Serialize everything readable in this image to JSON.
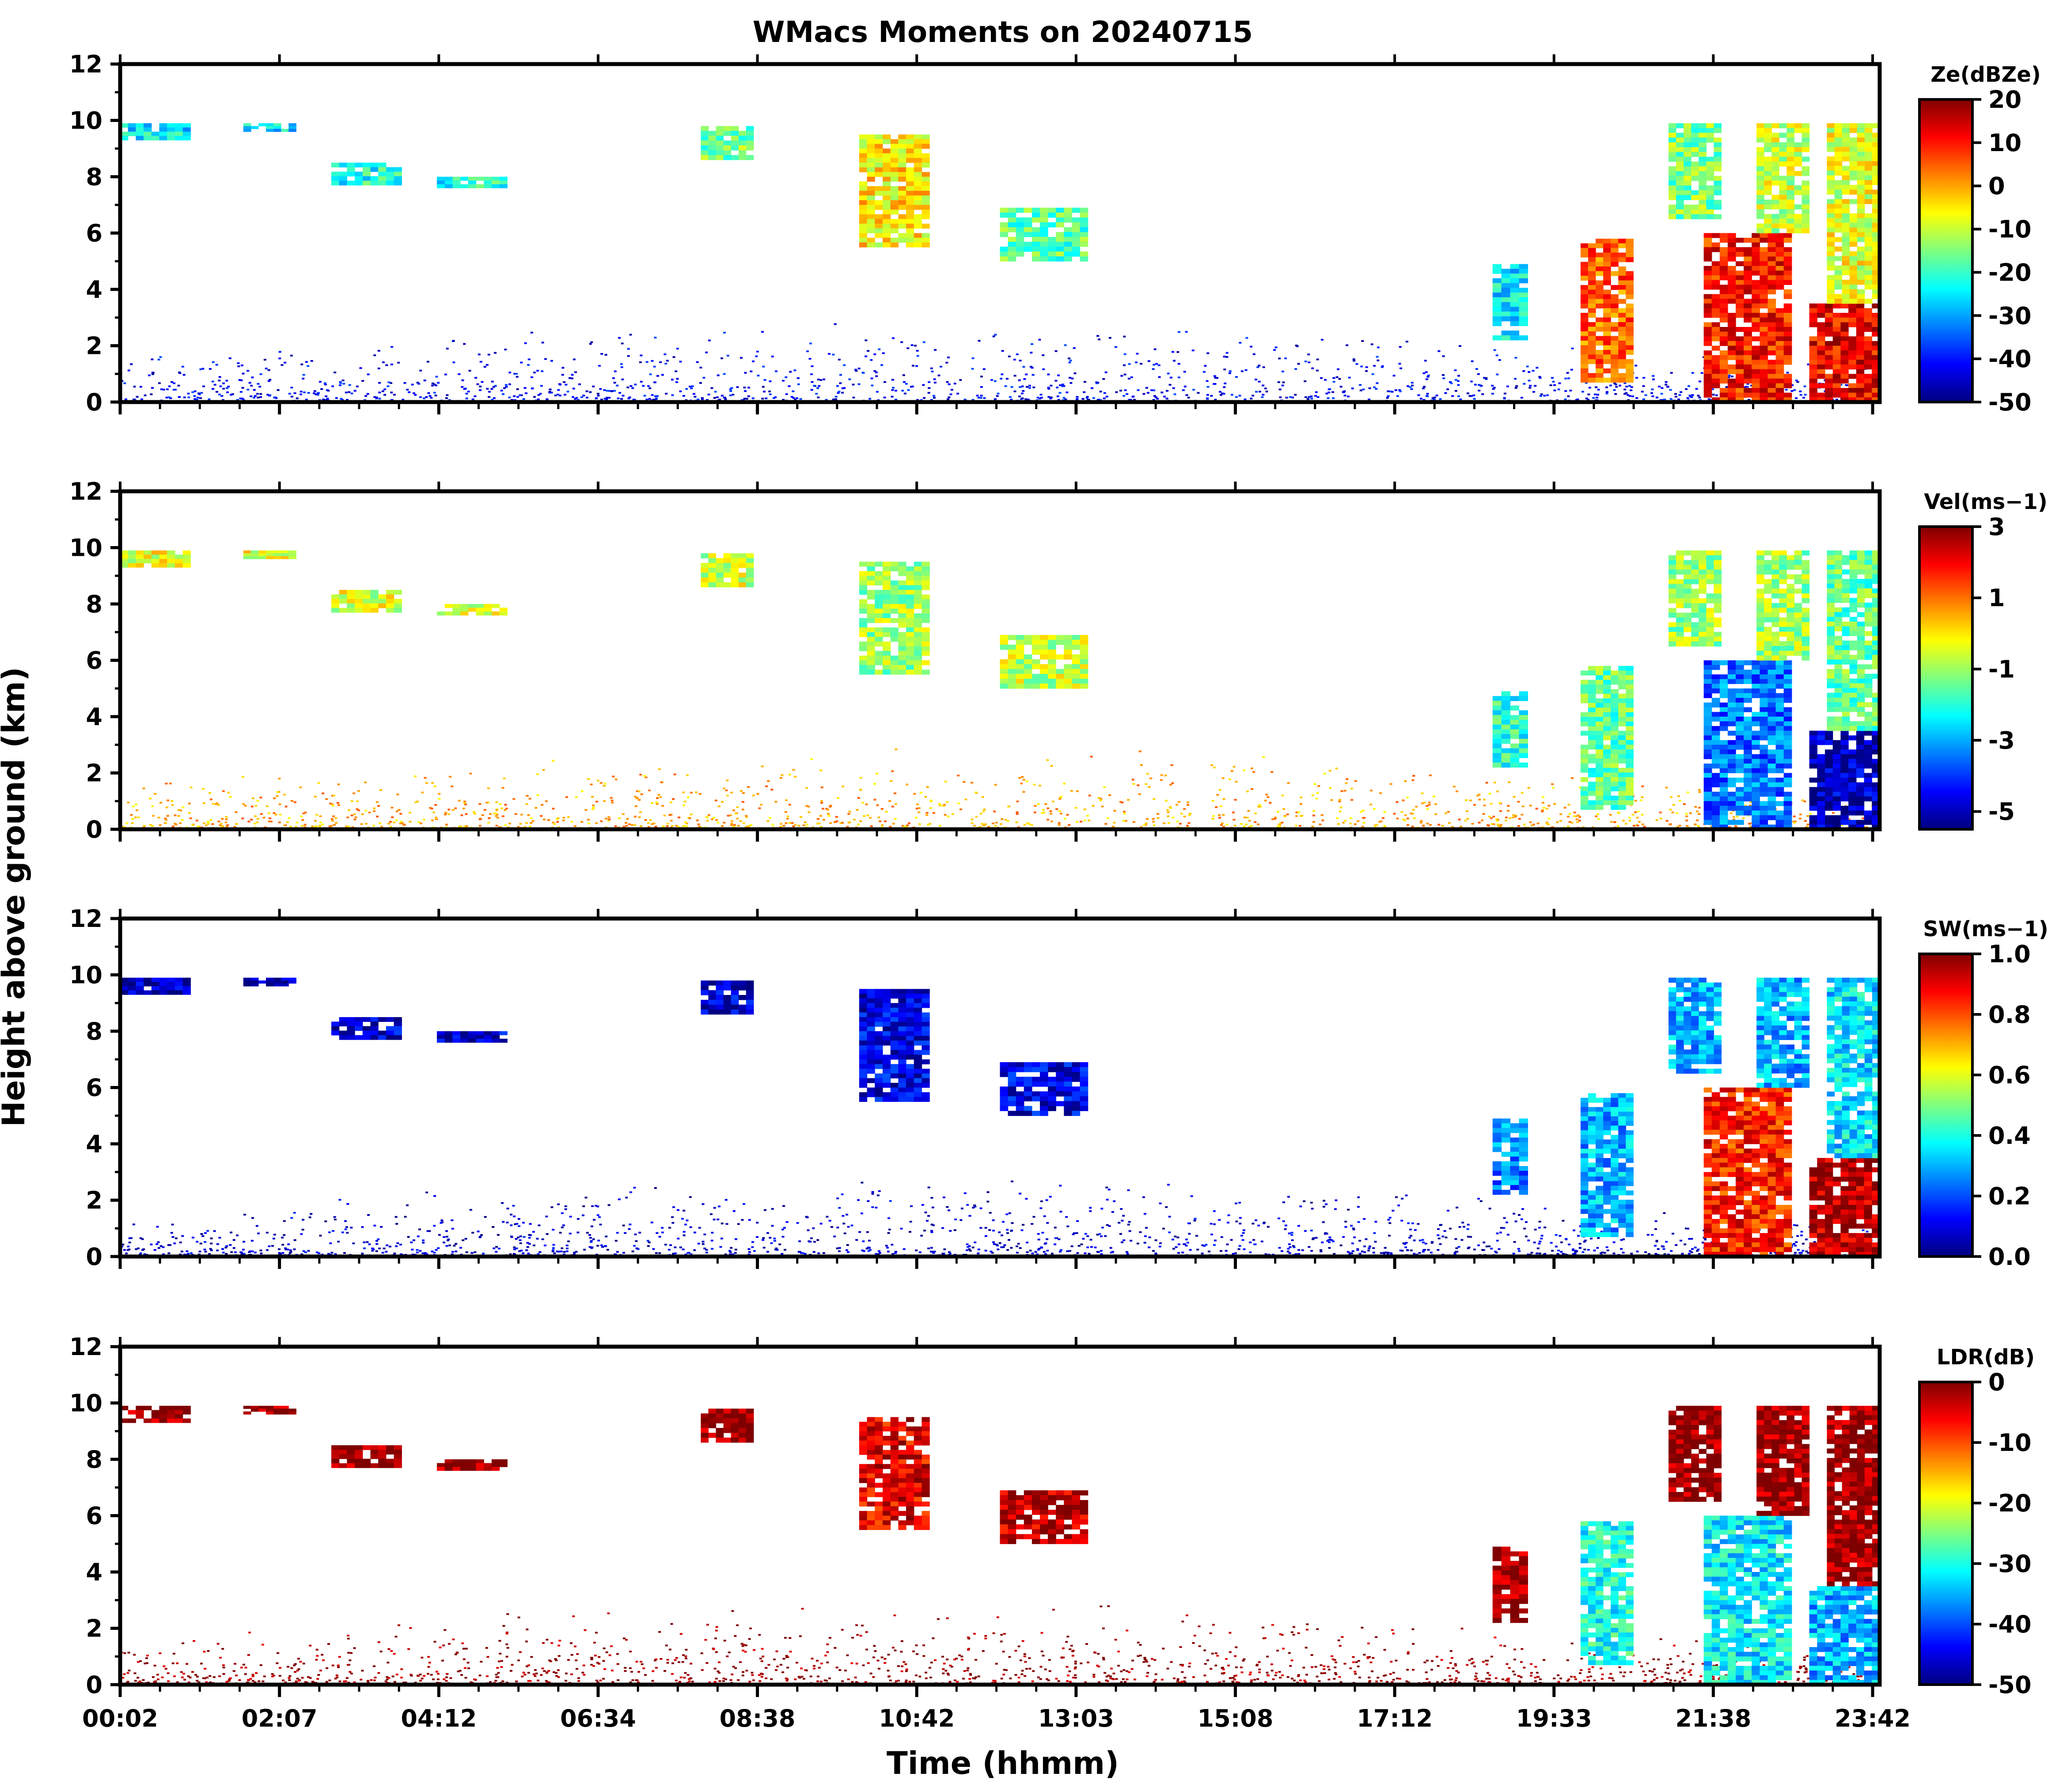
{
  "figure": {
    "title": "WMacs Moments on 20240715",
    "xlabel": "Time (hhmm)",
    "ylabel": "Height above ground (km)"
  },
  "colormap": "jet",
  "colormap_stops": [
    "#00007f",
    "#0000ff",
    "#007fff",
    "#00ffff",
    "#7fff7f",
    "#ffff00",
    "#ff7f00",
    "#ff0000",
    "#7f0000"
  ],
  "chart_data": [
    {
      "type": "heatmap",
      "panel": "reflectivity",
      "colorbar_label": "Ze(dBZe)",
      "colorbar_ticks": [
        "20",
        "10",
        "0",
        "-10",
        "-20",
        "-30",
        "-40",
        "-50"
      ],
      "crange": [
        -50,
        20
      ],
      "ylim": [
        0,
        12
      ],
      "yticks": [
        "0",
        "2",
        "4",
        "6",
        "8",
        "10",
        "12"
      ],
      "xticks": [
        "00:02",
        "02:07",
        "04:12",
        "06:34",
        "08:38",
        "10:42",
        "13:03",
        "15:08",
        "17:12",
        "19:33",
        "21:38",
        "23:42"
      ],
      "echoes": [
        {
          "t": [
            0.0,
            0.04
          ],
          "z": [
            9.3,
            9.9
          ],
          "value": -25
        },
        {
          "t": [
            0.07,
            0.1
          ],
          "z": [
            9.6,
            9.9
          ],
          "value": -25
        },
        {
          "t": [
            0.12,
            0.16
          ],
          "z": [
            7.7,
            8.5
          ],
          "value": -22
        },
        {
          "t": [
            0.18,
            0.22
          ],
          "z": [
            7.6,
            8.0
          ],
          "value": -22
        },
        {
          "t": [
            0.33,
            0.36
          ],
          "z": [
            8.6,
            9.8
          ],
          "value": -15
        },
        {
          "t": [
            0.42,
            0.46
          ],
          "z": [
            5.5,
            9.5
          ],
          "value": -5
        },
        {
          "t": [
            0.5,
            0.55
          ],
          "z": [
            5.0,
            6.9
          ],
          "value": -18
        },
        {
          "t": [
            0.78,
            0.8
          ],
          "z": [
            2.2,
            4.9
          ],
          "value": -25
        },
        {
          "t": [
            0.83,
            0.86
          ],
          "z": [
            0.7,
            5.8
          ],
          "value": 5
        },
        {
          "t": [
            0.88,
            0.91
          ],
          "z": [
            6.5,
            9.9
          ],
          "value": -15
        },
        {
          "t": [
            0.9,
            0.95
          ],
          "z": [
            0.0,
            6.0
          ],
          "value": 10
        },
        {
          "t": [
            0.93,
            0.96
          ],
          "z": [
            6.0,
            9.9
          ],
          "value": -10
        },
        {
          "t": [
            0.96,
            1.0
          ],
          "z": [
            0.0,
            3.5
          ],
          "value": 12
        },
        {
          "t": [
            0.97,
            1.0
          ],
          "z": [
            3.5,
            9.9
          ],
          "value": -8
        }
      ],
      "boundary_layer": {
        "t": [
          0.0,
          1.0
        ],
        "top_km": [
          1.5,
          3.0,
          1.5
        ],
        "value": -42
      }
    },
    {
      "type": "heatmap",
      "panel": "velocity",
      "colorbar_label": "Vel(ms−1)",
      "colorbar_ticks": [
        "3",
        "1",
        "-1",
        "-3",
        "-5"
      ],
      "crange": [
        -5.5,
        3
      ],
      "ylim": [
        0,
        12
      ],
      "yticks": [
        "0",
        "2",
        "4",
        "6",
        "8",
        "10",
        "12"
      ],
      "xticks": [
        "00:02",
        "02:07",
        "04:12",
        "06:34",
        "08:38",
        "10:42",
        "13:03",
        "15:08",
        "17:12",
        "19:33",
        "21:38",
        "23:42"
      ],
      "echoes": [
        {
          "t": [
            0.0,
            0.04
          ],
          "z": [
            9.3,
            9.9
          ],
          "value": -0.4
        },
        {
          "t": [
            0.07,
            0.1
          ],
          "z": [
            9.6,
            9.9
          ],
          "value": -0.4
        },
        {
          "t": [
            0.12,
            0.16
          ],
          "z": [
            7.7,
            8.5
          ],
          "value": -0.5
        },
        {
          "t": [
            0.18,
            0.22
          ],
          "z": [
            7.6,
            8.0
          ],
          "value": -0.5
        },
        {
          "t": [
            0.33,
            0.36
          ],
          "z": [
            8.6,
            9.8
          ],
          "value": -0.6
        },
        {
          "t": [
            0.42,
            0.46
          ],
          "z": [
            5.5,
            9.5
          ],
          "value": -1.0
        },
        {
          "t": [
            0.5,
            0.55
          ],
          "z": [
            5.0,
            6.9
          ],
          "value": -0.7
        },
        {
          "t": [
            0.78,
            0.8
          ],
          "z": [
            2.2,
            4.9
          ],
          "value": -2.0
        },
        {
          "t": [
            0.83,
            0.86
          ],
          "z": [
            0.7,
            5.8
          ],
          "value": -1.5
        },
        {
          "t": [
            0.88,
            0.91
          ],
          "z": [
            6.5,
            9.9
          ],
          "value": -1.0
        },
        {
          "t": [
            0.9,
            0.95
          ],
          "z": [
            0.0,
            6.0
          ],
          "value": -3.5
        },
        {
          "t": [
            0.93,
            0.96
          ],
          "z": [
            6.0,
            9.9
          ],
          "value": -1.0
        },
        {
          "t": [
            0.96,
            1.0
          ],
          "z": [
            0.0,
            3.5
          ],
          "value": -5.0
        },
        {
          "t": [
            0.97,
            1.0
          ],
          "z": [
            3.5,
            9.9
          ],
          "value": -1.5
        }
      ],
      "boundary_layer": {
        "t": [
          0.0,
          1.0
        ],
        "top_km": [
          1.5,
          3.0,
          1.5
        ],
        "value": 0.5
      }
    },
    {
      "type": "heatmap",
      "panel": "spectral_width",
      "colorbar_label": "SW(ms−1)",
      "colorbar_ticks": [
        "1.0",
        "0.8",
        "0.6",
        "0.4",
        "0.2",
        "0.0"
      ],
      "crange": [
        0,
        1
      ],
      "ylim": [
        0,
        12
      ],
      "yticks": [
        "0",
        "2",
        "4",
        "6",
        "8",
        "10",
        "12"
      ],
      "xticks": [
        "00:02",
        "02:07",
        "04:12",
        "06:34",
        "08:38",
        "10:42",
        "13:03",
        "15:08",
        "17:12",
        "19:33",
        "21:38",
        "23:42"
      ],
      "echoes": [
        {
          "t": [
            0.0,
            0.04
          ],
          "z": [
            9.3,
            9.9
          ],
          "value": 0.05
        },
        {
          "t": [
            0.07,
            0.1
          ],
          "z": [
            9.6,
            9.9
          ],
          "value": 0.05
        },
        {
          "t": [
            0.12,
            0.16
          ],
          "z": [
            7.7,
            8.5
          ],
          "value": 0.08
        },
        {
          "t": [
            0.18,
            0.22
          ],
          "z": [
            7.6,
            8.0
          ],
          "value": 0.08
        },
        {
          "t": [
            0.33,
            0.36
          ],
          "z": [
            8.6,
            9.8
          ],
          "value": 0.08
        },
        {
          "t": [
            0.42,
            0.46
          ],
          "z": [
            5.5,
            9.5
          ],
          "value": 0.1
        },
        {
          "t": [
            0.5,
            0.55
          ],
          "z": [
            5.0,
            6.9
          ],
          "value": 0.1
        },
        {
          "t": [
            0.78,
            0.8
          ],
          "z": [
            2.2,
            4.9
          ],
          "value": 0.25
        },
        {
          "t": [
            0.83,
            0.86
          ],
          "z": [
            0.7,
            5.8
          ],
          "value": 0.3
        },
        {
          "t": [
            0.88,
            0.91
          ],
          "z": [
            6.5,
            9.9
          ],
          "value": 0.3
        },
        {
          "t": [
            0.9,
            0.95
          ],
          "z": [
            0.0,
            6.0
          ],
          "value": 0.85
        },
        {
          "t": [
            0.93,
            0.96
          ],
          "z": [
            6.0,
            9.9
          ],
          "value": 0.3
        },
        {
          "t": [
            0.96,
            1.0
          ],
          "z": [
            0.0,
            3.5
          ],
          "value": 0.95
        },
        {
          "t": [
            0.97,
            1.0
          ],
          "z": [
            3.5,
            9.9
          ],
          "value": 0.35
        }
      ],
      "boundary_layer": {
        "t": [
          0.0,
          1.0
        ],
        "top_km": [
          1.5,
          3.0,
          1.5
        ],
        "value": 0.08
      }
    },
    {
      "type": "heatmap",
      "panel": "ldr",
      "colorbar_label": "LDR(dB)",
      "colorbar_ticks": [
        "0",
        "-10",
        "-20",
        "-30",
        "-40",
        "-50"
      ],
      "crange": [
        -50,
        0
      ],
      "ylim": [
        0,
        12
      ],
      "yticks": [
        "0",
        "2",
        "4",
        "6",
        "8",
        "10",
        "12"
      ],
      "xticks": [
        "00:02",
        "02:07",
        "04:12",
        "06:34",
        "08:38",
        "10:42",
        "13:03",
        "15:08",
        "17:12",
        "19:33",
        "21:38",
        "23:42"
      ],
      "echoes": [
        {
          "t": [
            0.0,
            0.04
          ],
          "z": [
            9.3,
            9.9
          ],
          "value": -1
        },
        {
          "t": [
            0.07,
            0.1
          ],
          "z": [
            9.6,
            9.9
          ],
          "value": -1
        },
        {
          "t": [
            0.12,
            0.16
          ],
          "z": [
            7.7,
            8.5
          ],
          "value": -1
        },
        {
          "t": [
            0.18,
            0.22
          ],
          "z": [
            7.6,
            8.0
          ],
          "value": -1
        },
        {
          "t": [
            0.33,
            0.36
          ],
          "z": [
            8.6,
            9.8
          ],
          "value": -1
        },
        {
          "t": [
            0.42,
            0.46
          ],
          "z": [
            5.5,
            9.5
          ],
          "value": -5
        },
        {
          "t": [
            0.5,
            0.55
          ],
          "z": [
            5.0,
            6.9
          ],
          "value": -3
        },
        {
          "t": [
            0.78,
            0.8
          ],
          "z": [
            2.2,
            4.9
          ],
          "value": -1
        },
        {
          "t": [
            0.83,
            0.86
          ],
          "z": [
            0.7,
            5.8
          ],
          "value": -30
        },
        {
          "t": [
            0.88,
            0.91
          ],
          "z": [
            6.5,
            9.9
          ],
          "value": -1
        },
        {
          "t": [
            0.9,
            0.95
          ],
          "z": [
            0.0,
            6.0
          ],
          "value": -32
        },
        {
          "t": [
            0.93,
            0.96
          ],
          "z": [
            6.0,
            9.9
          ],
          "value": -1
        },
        {
          "t": [
            0.96,
            1.0
          ],
          "z": [
            0.0,
            3.5
          ],
          "value": -35
        },
        {
          "t": [
            0.97,
            1.0
          ],
          "z": [
            3.5,
            9.9
          ],
          "value": -1
        }
      ],
      "boundary_layer": {
        "t": [
          0.0,
          1.0
        ],
        "top_km": [
          1.5,
          3.0,
          1.5
        ],
        "value": -1
      }
    }
  ]
}
